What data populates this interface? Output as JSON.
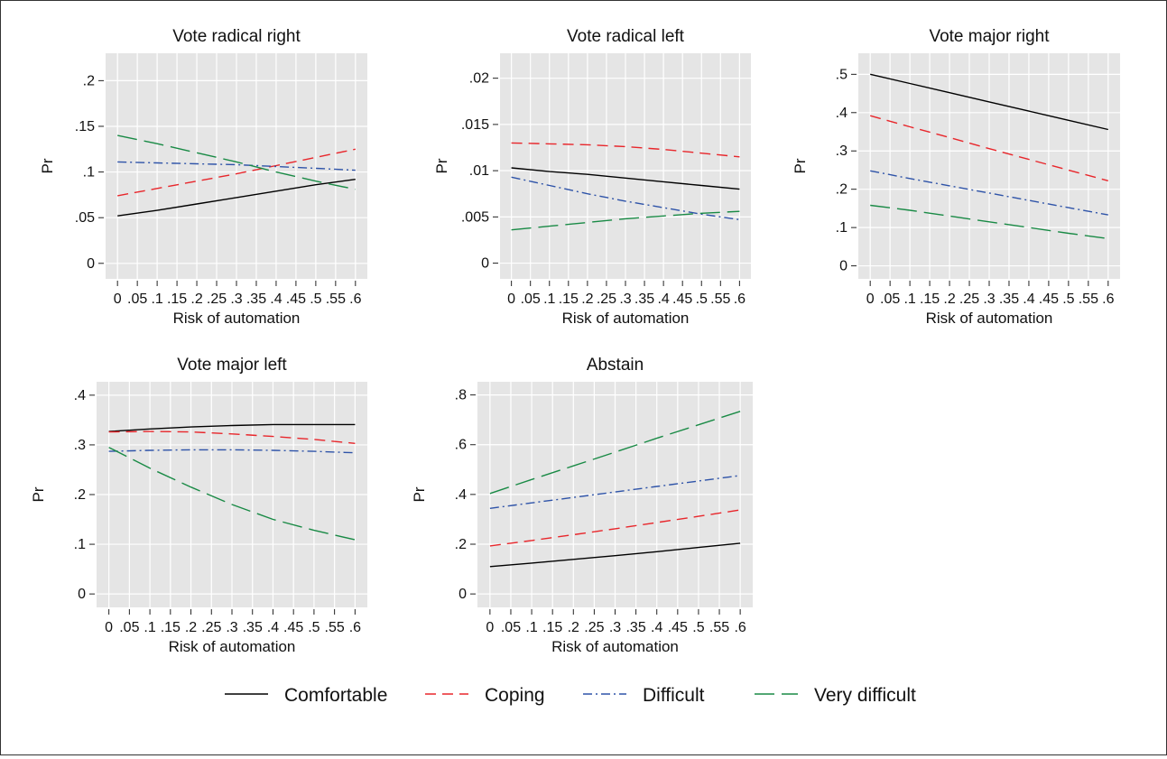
{
  "colors": {
    "comfortable": "#000000",
    "coping": "#e8262b",
    "difficult": "#2e53a8",
    "very_difficult": "#198a45",
    "panel_background": "#e5e5e5",
    "grid": "#ffffff"
  },
  "legend": {
    "placement": "bottom",
    "items": [
      {
        "name": "Comfortable",
        "color": "#000000",
        "dash": "solid"
      },
      {
        "name": "Coping",
        "color": "#e8262b",
        "dash": "long-dash"
      },
      {
        "name": "Difficult",
        "color": "#2e53a8",
        "dash": "dash-dot"
      },
      {
        "name": "Very difficult",
        "color": "#198a45",
        "dash": "longer-dash"
      }
    ]
  },
  "chart_data": [
    {
      "type": "line",
      "title": "Vote radical right",
      "xlabel": "Risk of automation",
      "ylabel": "Pr",
      "x_ticks": [
        "0",
        ".05",
        ".1",
        ".15",
        ".2",
        ".25",
        ".3",
        ".35",
        ".4",
        ".45",
        ".5",
        ".55",
        ".6"
      ],
      "y_ticks": [
        "0",
        ".05",
        ".1",
        ".15",
        ".2"
      ],
      "xlim": [
        -0.03,
        0.63
      ],
      "ylim": [
        -0.017,
        0.23
      ],
      "grid": true,
      "x": [
        0,
        0.1,
        0.2,
        0.3,
        0.4,
        0.5,
        0.6
      ],
      "series": [
        {
          "name": "Comfortable",
          "values": [
            0.052,
            0.058,
            0.065,
            0.072,
            0.079,
            0.086,
            0.092
          ]
        },
        {
          "name": "Coping",
          "values": [
            0.074,
            0.082,
            0.09,
            0.098,
            0.107,
            0.116,
            0.125
          ]
        },
        {
          "name": "Difficult",
          "values": [
            0.111,
            0.11,
            0.109,
            0.108,
            0.106,
            0.104,
            0.102
          ]
        },
        {
          "name": "Very difficult",
          "values": [
            0.14,
            0.131,
            0.121,
            0.111,
            0.1,
            0.09,
            0.081
          ]
        }
      ]
    },
    {
      "type": "line",
      "title": "Vote radical left",
      "xlabel": "Risk of automation",
      "ylabel": "Pr",
      "x_ticks": [
        "0",
        ".05",
        ".1",
        ".15",
        ".2",
        ".25",
        ".3",
        ".35",
        ".4",
        ".45",
        ".5",
        ".55",
        ".6"
      ],
      "y_ticks": [
        "0",
        ".005",
        ".01",
        ".015",
        ".02"
      ],
      "xlim": [
        -0.03,
        0.63
      ],
      "ylim": [
        -0.0017,
        0.0227
      ],
      "grid": true,
      "x": [
        0,
        0.1,
        0.2,
        0.3,
        0.4,
        0.5,
        0.6
      ],
      "series": [
        {
          "name": "Comfortable",
          "values": [
            0.0103,
            0.0099,
            0.0096,
            0.0092,
            0.0088,
            0.0084,
            0.008
          ]
        },
        {
          "name": "Coping",
          "values": [
            0.013,
            0.0129,
            0.0128,
            0.0126,
            0.0123,
            0.0119,
            0.0115
          ]
        },
        {
          "name": "Difficult",
          "values": [
            0.0093,
            0.0084,
            0.0075,
            0.0067,
            0.006,
            0.0053,
            0.0047
          ]
        },
        {
          "name": "Very difficult",
          "values": [
            0.0036,
            0.004,
            0.0044,
            0.0048,
            0.0051,
            0.0054,
            0.0056
          ]
        }
      ]
    },
    {
      "type": "line",
      "title": "Vote major right",
      "xlabel": "Risk of automation",
      "ylabel": "Pr",
      "x_ticks": [
        "0",
        ".05",
        ".1",
        ".15",
        ".2",
        ".25",
        ".3",
        ".35",
        ".4",
        ".45",
        ".5",
        ".55",
        ".6"
      ],
      "y_ticks": [
        "0",
        ".1",
        ".2",
        ".3",
        ".4",
        ".5"
      ],
      "xlim": [
        -0.03,
        0.63
      ],
      "ylim": [
        -0.034,
        0.555
      ],
      "grid": true,
      "x": [
        0,
        0.1,
        0.2,
        0.3,
        0.4,
        0.5,
        0.6
      ],
      "series": [
        {
          "name": "Comfortable",
          "values": [
            0.5,
            0.476,
            0.452,
            0.428,
            0.404,
            0.38,
            0.356
          ]
        },
        {
          "name": "Coping",
          "values": [
            0.392,
            0.363,
            0.335,
            0.306,
            0.278,
            0.25,
            0.222
          ]
        },
        {
          "name": "Difficult",
          "values": [
            0.248,
            0.228,
            0.209,
            0.19,
            0.171,
            0.152,
            0.133
          ]
        },
        {
          "name": "Very difficult",
          "values": [
            0.158,
            0.145,
            0.13,
            0.115,
            0.1,
            0.085,
            0.071
          ]
        }
      ]
    },
    {
      "type": "line",
      "title": "Vote major left",
      "xlabel": "Risk of automation",
      "ylabel": "Pr",
      "x_ticks": [
        "0",
        ".05",
        ".1",
        ".15",
        ".2",
        ".25",
        ".3",
        ".35",
        ".4",
        ".45",
        ".5",
        ".55",
        ".6"
      ],
      "y_ticks": [
        "0",
        ".1",
        ".2",
        ".3",
        ".4"
      ],
      "xlim": [
        -0.03,
        0.63
      ],
      "ylim": [
        -0.027,
        0.427
      ],
      "grid": true,
      "x": [
        0,
        0.1,
        0.2,
        0.3,
        0.4,
        0.5,
        0.6
      ],
      "series": [
        {
          "name": "Comfortable",
          "values": [
            0.327,
            0.332,
            0.336,
            0.339,
            0.341,
            0.341,
            0.341
          ]
        },
        {
          "name": "Coping",
          "values": [
            0.326,
            0.327,
            0.326,
            0.322,
            0.317,
            0.311,
            0.303
          ]
        },
        {
          "name": "Difficult",
          "values": [
            0.287,
            0.289,
            0.29,
            0.29,
            0.289,
            0.287,
            0.284
          ]
        },
        {
          "name": "Very difficult",
          "values": [
            0.295,
            0.253,
            0.215,
            0.18,
            0.15,
            0.128,
            0.109
          ]
        }
      ]
    },
    {
      "type": "line",
      "title": "Abstain",
      "xlabel": "Risk of automation",
      "ylabel": "Pr",
      "x_ticks": [
        "0",
        ".05",
        ".1",
        ".15",
        ".2",
        ".25",
        ".3",
        ".35",
        ".4",
        ".45",
        ".5",
        ".55",
        ".6"
      ],
      "y_ticks": [
        "0",
        ".2",
        ".4",
        ".6",
        ".8"
      ],
      "xlim": [
        -0.03,
        0.63
      ],
      "ylim": [
        -0.054,
        0.853
      ],
      "grid": true,
      "x": [
        0,
        0.1,
        0.2,
        0.3,
        0.4,
        0.5,
        0.6
      ],
      "series": [
        {
          "name": "Comfortable",
          "values": [
            0.11,
            0.124,
            0.139,
            0.154,
            0.17,
            0.187,
            0.204
          ]
        },
        {
          "name": "Coping",
          "values": [
            0.193,
            0.215,
            0.238,
            0.262,
            0.287,
            0.312,
            0.338
          ]
        },
        {
          "name": "Difficult",
          "values": [
            0.344,
            0.366,
            0.388,
            0.41,
            0.432,
            0.454,
            0.476
          ]
        },
        {
          "name": "Very difficult",
          "values": [
            0.404,
            0.46,
            0.515,
            0.57,
            0.626,
            0.68,
            0.734
          ]
        }
      ]
    }
  ]
}
